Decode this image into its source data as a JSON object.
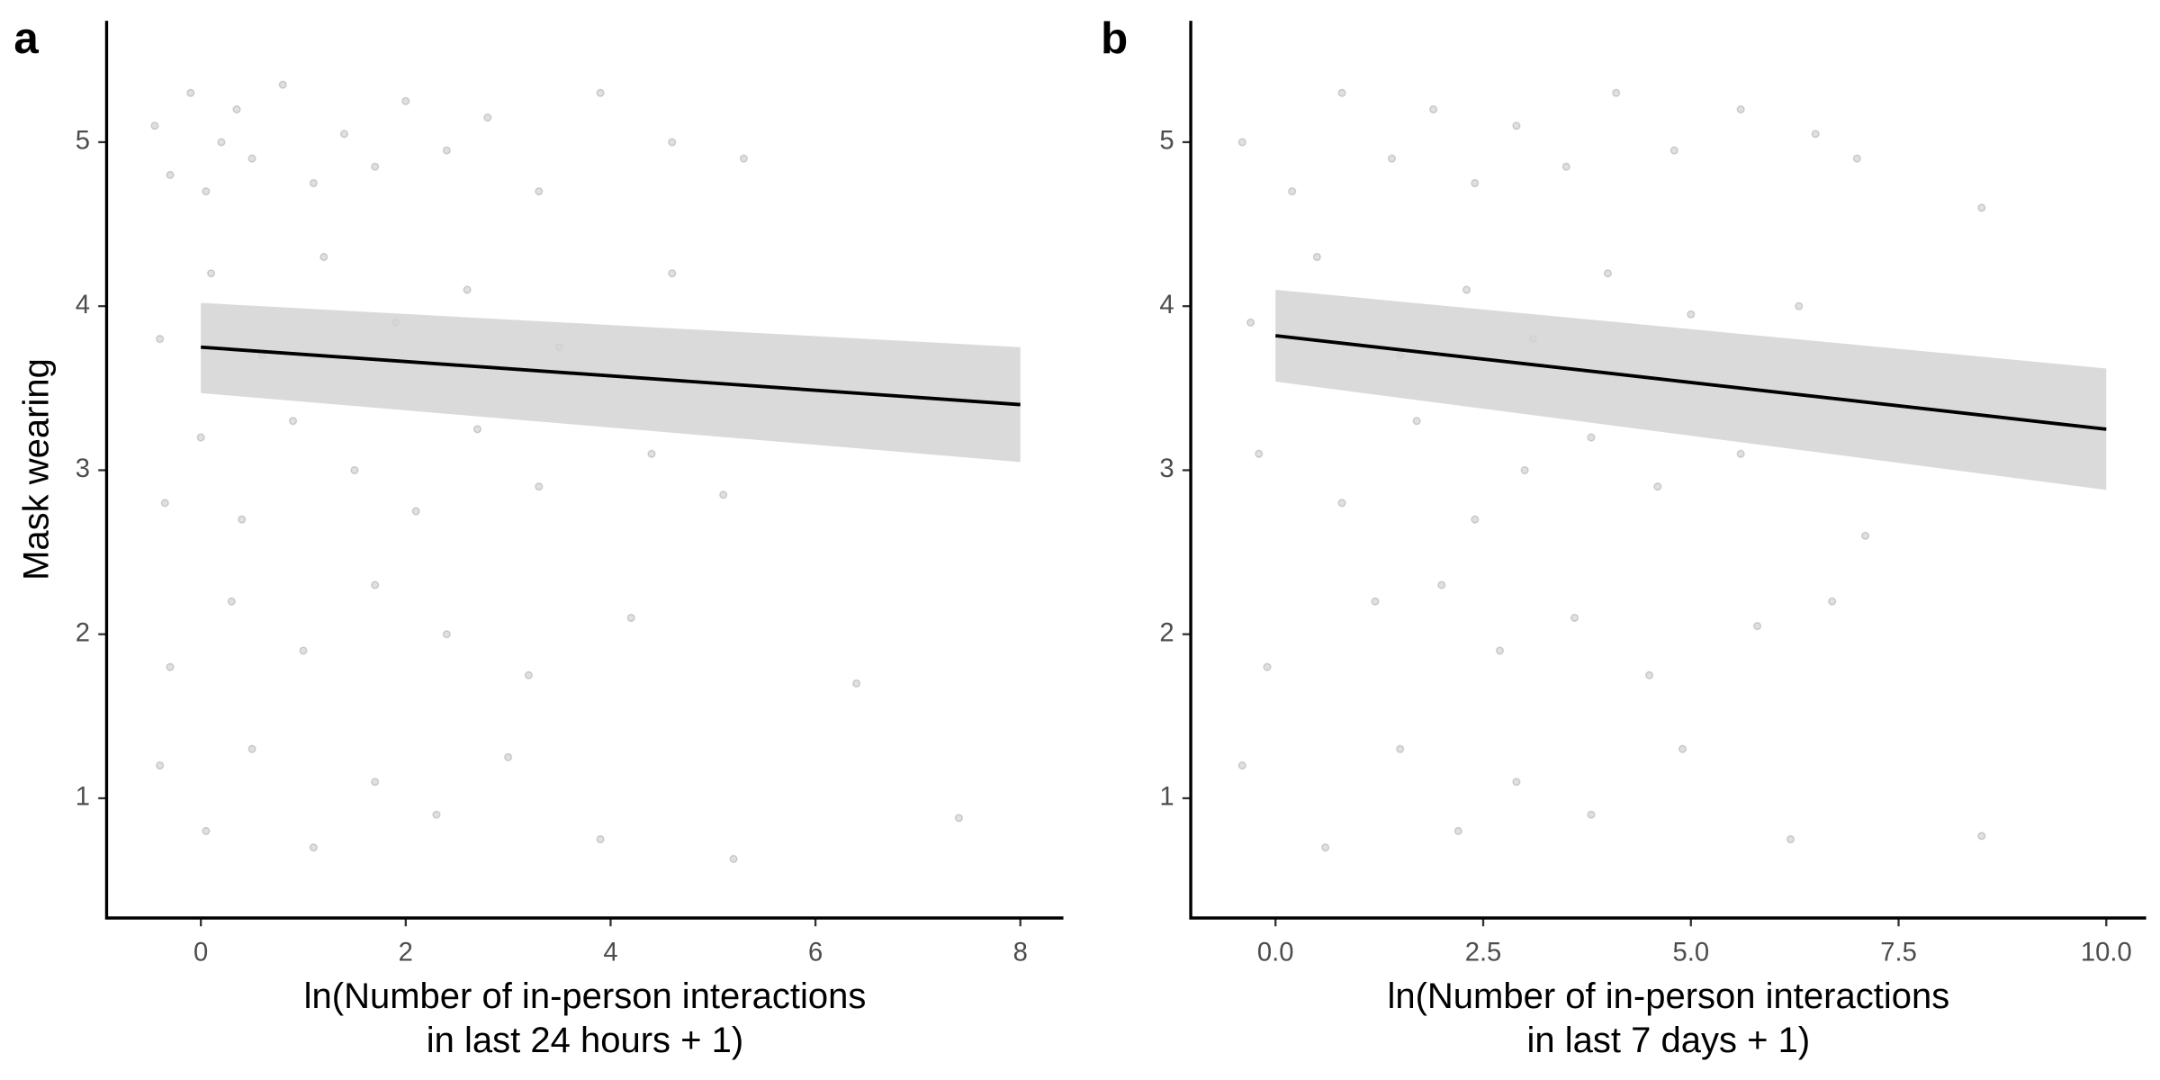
{
  "chart_data": [
    {
      "type": "scatter",
      "panel_label": "a",
      "ylabel": "Mask wearing",
      "xlabel": [
        "ln(Number of in-person interactions",
        "in last 24 hours + 1)"
      ],
      "xlim": [
        -0.92,
        8.42
      ],
      "ylim": [
        0.27,
        5.74
      ],
      "xticks": [
        0,
        2,
        4,
        6,
        8
      ],
      "yticks": [
        1,
        2,
        3,
        4,
        5
      ],
      "points": {
        "color": "#000000",
        "x": [
          -0.45,
          -0.3,
          -0.1,
          0.05,
          0.2,
          0.35,
          0.5,
          0.8,
          1.1,
          1.4,
          1.7,
          2.0,
          2.4,
          2.8,
          3.3,
          3.9,
          4.6,
          5.3,
          -0.4,
          0.1,
          0.6,
          1.2,
          1.9,
          2.6,
          3.5,
          4.6,
          -0.35,
          0.0,
          0.4,
          0.9,
          1.5,
          2.1,
          2.7,
          3.3,
          4.4,
          5.1,
          -0.3,
          0.3,
          1.0,
          1.7,
          2.4,
          3.2,
          4.2,
          6.4,
          -0.4,
          0.05,
          0.5,
          1.1,
          1.7,
          2.3,
          3.0,
          3.9,
          5.2,
          7.4
        ],
        "y": [
          5.1,
          4.8,
          5.3,
          4.7,
          5.0,
          5.2,
          4.9,
          5.35,
          4.75,
          5.05,
          4.85,
          5.25,
          4.95,
          5.15,
          4.7,
          5.3,
          5.0,
          4.9,
          3.8,
          4.2,
          3.7,
          4.3,
          3.9,
          4.1,
          3.75,
          4.2,
          2.8,
          3.2,
          2.7,
          3.3,
          3.0,
          2.75,
          3.25,
          2.9,
          3.1,
          2.85,
          1.8,
          2.2,
          1.9,
          2.3,
          2.0,
          1.75,
          2.1,
          1.7,
          1.2,
          0.8,
          1.3,
          0.7,
          1.1,
          0.9,
          1.25,
          0.75,
          0.63,
          0.88
        ]
      },
      "fit": {
        "color": "#000000",
        "band_color": "#d3d3d3",
        "x": [
          0,
          8
        ],
        "y": [
          3.75,
          3.4
        ],
        "lower": [
          3.47,
          3.05
        ],
        "upper": [
          4.02,
          3.75
        ]
      }
    },
    {
      "type": "scatter",
      "panel_label": "b",
      "xlabel": [
        "ln(Number of in-person interactions",
        "in last 7 days + 1)"
      ],
      "xlim": [
        -1.02,
        10.48
      ],
      "ylim": [
        0.27,
        5.74
      ],
      "xticks": [
        {
          "value": 0,
          "label": "0.0"
        },
        2.5,
        {
          "value": 5,
          "label": "5.0"
        },
        7.5,
        {
          "value": 10,
          "label": "10.0"
        }
      ],
      "yticks": [
        1,
        2,
        3,
        4,
        5
      ],
      "points": {
        "color": "#000000",
        "x": [
          -0.4,
          0.2,
          0.8,
          1.4,
          1.9,
          2.4,
          2.9,
          3.5,
          4.1,
          4.8,
          5.6,
          6.5,
          7.0,
          8.5,
          -0.3,
          0.5,
          1.5,
          2.3,
          3.1,
          4.0,
          5.0,
          6.3,
          -0.2,
          0.8,
          1.7,
          2.4,
          3.0,
          3.8,
          4.6,
          5.6,
          7.1,
          -0.1,
          1.2,
          2.0,
          2.7,
          3.6,
          4.5,
          5.8,
          6.7,
          -0.4,
          0.6,
          1.5,
          2.2,
          2.9,
          3.8,
          4.9,
          6.2,
          8.5
        ],
        "y": [
          5.0,
          4.7,
          5.3,
          4.9,
          5.2,
          4.75,
          5.1,
          4.85,
          5.3,
          4.95,
          5.2,
          5.05,
          4.9,
          4.6,
          3.9,
          4.3,
          3.7,
          4.1,
          3.8,
          4.2,
          3.95,
          4.0,
          3.1,
          2.8,
          3.3,
          2.7,
          3.0,
          3.2,
          2.9,
          3.1,
          2.6,
          1.8,
          2.2,
          2.3,
          1.9,
          2.1,
          1.75,
          2.05,
          2.2,
          1.2,
          0.7,
          1.3,
          0.8,
          1.1,
          0.9,
          1.3,
          0.75,
          0.77
        ]
      },
      "fit": {
        "color": "#000000",
        "band_color": "#d3d3d3",
        "x": [
          0,
          10
        ],
        "y": [
          3.82,
          3.25
        ],
        "lower": [
          3.54,
          2.88
        ],
        "upper": [
          4.1,
          3.62
        ]
      }
    }
  ]
}
